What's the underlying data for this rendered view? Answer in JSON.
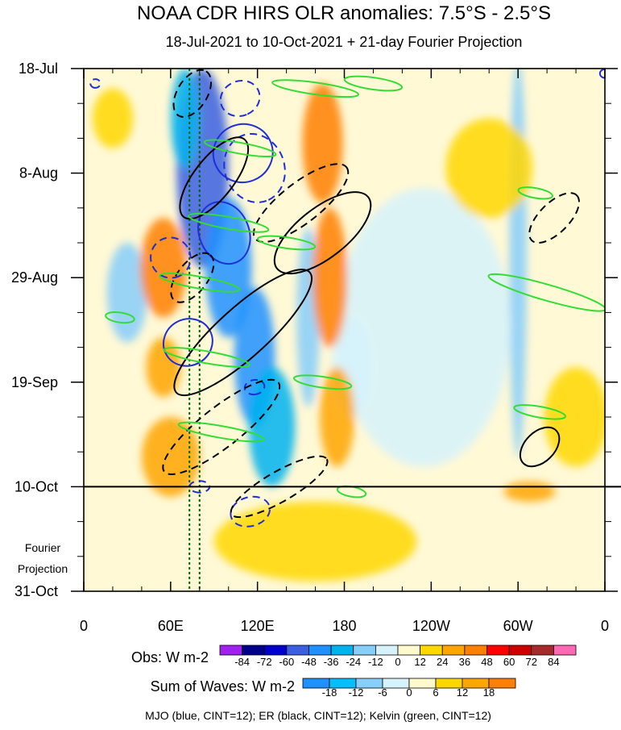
{
  "chart_data": {
    "type": "heatmap",
    "title": "NOAA CDR HIRS OLR anomalies: 7.5°S - 2.5°S",
    "subtitle": "18-Jul-2021 to 10-Oct-2021 + 21-day Fourier Projection",
    "x_axis": {
      "range_deg_east": [
        0,
        360
      ],
      "ticks": [
        {
          "lon": 0,
          "label": "0"
        },
        {
          "lon": 60,
          "label": "60E"
        },
        {
          "lon": 120,
          "label": "120E"
        },
        {
          "lon": 180,
          "label": "180"
        },
        {
          "lon": 240,
          "label": "120W"
        },
        {
          "lon": 300,
          "label": "60W"
        },
        {
          "lon": 360,
          "label": "0"
        }
      ]
    },
    "y_axis": {
      "range_days": [
        0,
        105
      ],
      "ticks": [
        {
          "day": 0,
          "label": "18-Jul"
        },
        {
          "day": 21,
          "label": "8-Aug"
        },
        {
          "day": 42,
          "label": "29-Aug"
        },
        {
          "day": 63,
          "label": "19-Sep"
        },
        {
          "day": 84,
          "label": "10-Oct"
        },
        {
          "day": 105,
          "label": "31-Oct"
        }
      ],
      "projection_start_day": 84,
      "projection_label_line1": "Fourier",
      "projection_label_line2": "Projection"
    },
    "obs_colorbar": {
      "label": "Obs: W m-2",
      "levels": [
        -84,
        -72,
        -60,
        -48,
        -36,
        -24,
        -12,
        0,
        12,
        24,
        36,
        48,
        60,
        72,
        84
      ],
      "labels": [
        "-84",
        "-72",
        "-60",
        "-48",
        "-36",
        "-24",
        "-12",
        "0",
        "12",
        "24",
        "36",
        "48",
        "60",
        "72",
        "84"
      ],
      "colors": [
        "#a020f0",
        "#00008b",
        "#0000cd",
        "#3a5fe0",
        "#1e90ff",
        "#00b2ee",
        "#87cefa",
        "#d6f2fb",
        "#fffacd",
        "#ffd700",
        "#ffa500",
        "#ff7f00",
        "#ff0000",
        "#cd0000",
        "#a52a2a",
        "#ff69b4"
      ]
    },
    "waves_colorbar": {
      "label": "Sum of Waves: W m-2",
      "levels": [
        -18,
        -12,
        -6,
        0,
        6,
        12,
        18
      ],
      "labels": [
        "-18",
        "-12",
        "-6",
        "0",
        "6",
        "12",
        "18"
      ],
      "colors": [
        "#1e90ff",
        "#00bfff",
        "#87cefa",
        "#d6f2fb",
        "#fffacd",
        "#ffd700",
        "#ffa500",
        "#ff7f00"
      ]
    },
    "footer": "MJO (blue, CINT=12); ER (black, CINT=12); Kelvin (green, CINT=12)",
    "features": {
      "mjo_contours": [
        {
          "lon": 110,
          "day": 17,
          "rx": 20,
          "ry": 6,
          "angle": 68,
          "dash": false
        },
        {
          "lon": 97,
          "day": 33,
          "rx": 22,
          "ry": 5,
          "angle": 68,
          "dash": false
        },
        {
          "lon": 72,
          "day": 55,
          "rx": 16,
          "ry": 5,
          "angle": 62,
          "dash": false
        },
        {
          "lon": 118,
          "day": 20,
          "rx": 24,
          "ry": 6,
          "angle": 70,
          "dash": true
        },
        {
          "lon": 108,
          "day": 6,
          "rx": 12,
          "ry": 4,
          "angle": 68,
          "dash": true
        },
        {
          "lon": 60,
          "day": 38,
          "rx": 14,
          "ry": 4,
          "angle": 65,
          "dash": true
        },
        {
          "lon": 118,
          "day": 64,
          "rx": 5,
          "ry": 2,
          "angle": 80,
          "dash": true
        },
        {
          "lon": 80,
          "day": 84,
          "rx": 4,
          "ry": 2,
          "angle": 90,
          "dash": true
        },
        {
          "lon": 115,
          "day": 89,
          "rx": 10,
          "ry": 4,
          "angle": 75,
          "dash": true
        },
        {
          "lon": 8,
          "day": 3,
          "rx": 3,
          "ry": 1,
          "angle": 90,
          "dash": true
        },
        {
          "lon": 360,
          "day": 1,
          "rx": 3,
          "ry": 1,
          "angle": 90,
          "dash": false
        }
      ],
      "er_contours": [
        {
          "lon": 75,
          "day": 5,
          "rx": 18,
          "ry": 3,
          "angle": -58,
          "dash": true
        },
        {
          "lon": 90,
          "day": 22,
          "rx": 34,
          "ry": 4,
          "angle": -52,
          "dash": false
        },
        {
          "lon": 75,
          "day": 42,
          "rx": 20,
          "ry": 3,
          "angle": -52,
          "dash": true
        },
        {
          "lon": 150,
          "day": 27,
          "rx": 40,
          "ry": 4,
          "angle": -38,
          "dash": true
        },
        {
          "lon": 165,
          "day": 33,
          "rx": 40,
          "ry": 5,
          "angle": -38,
          "dash": false
        },
        {
          "lon": 110,
          "day": 53,
          "rx": 62,
          "ry": 5,
          "angle": -42,
          "dash": false
        },
        {
          "lon": 95,
          "day": 72,
          "rx": 50,
          "ry": 4,
          "angle": -38,
          "dash": true
        },
        {
          "lon": 135,
          "day": 84,
          "rx": 38,
          "ry": 3,
          "angle": -30,
          "dash": true
        },
        {
          "lon": 325,
          "day": 30,
          "rx": 22,
          "ry": 3,
          "angle": -45,
          "dash": true
        },
        {
          "lon": 315,
          "day": 76,
          "rx": 16,
          "ry": 3,
          "angle": -45,
          "dash": false
        }
      ],
      "kelvin_contours": [
        {
          "lon": 160,
          "day": 4,
          "rx": 30,
          "ry": 1.2,
          "angle": 8,
          "dash": false
        },
        {
          "lon": 200,
          "day": 3,
          "rx": 20,
          "ry": 1.2,
          "angle": 8,
          "dash": false
        },
        {
          "lon": 108,
          "day": 16,
          "rx": 25,
          "ry": 1.1,
          "angle": 10,
          "dash": false
        },
        {
          "lon": 100,
          "day": 31,
          "rx": 28,
          "ry": 1.2,
          "angle": 10,
          "dash": false
        },
        {
          "lon": 140,
          "day": 35,
          "rx": 20,
          "ry": 1.1,
          "angle": 8,
          "dash": false
        },
        {
          "lon": 80,
          "day": 43,
          "rx": 28,
          "ry": 1.2,
          "angle": 10,
          "dash": false
        },
        {
          "lon": 25,
          "day": 50,
          "rx": 10,
          "ry": 1,
          "angle": 8,
          "dash": false
        },
        {
          "lon": 85,
          "day": 58,
          "rx": 30,
          "ry": 1.2,
          "angle": 10,
          "dash": false
        },
        {
          "lon": 165,
          "day": 63,
          "rx": 20,
          "ry": 1.1,
          "angle": 8,
          "dash": false
        },
        {
          "lon": 95,
          "day": 73,
          "rx": 30,
          "ry": 1.2,
          "angle": 10,
          "dash": false
        },
        {
          "lon": 320,
          "day": 45,
          "rx": 42,
          "ry": 1.6,
          "angle": 16,
          "dash": false
        },
        {
          "lon": 315,
          "day": 69,
          "rx": 18,
          "ry": 1.1,
          "angle": 10,
          "dash": false
        },
        {
          "lon": 312,
          "day": 25,
          "rx": 12,
          "ry": 1,
          "angle": 10,
          "dash": false
        },
        {
          "lon": 185,
          "day": 85,
          "rx": 10,
          "ry": 1,
          "angle": 10,
          "dash": false
        }
      ],
      "dotted_green_lines_lon": [
        73,
        80
      ],
      "obs_blobs": [
        {
          "lon": 82,
          "day": 20,
          "rx": 18,
          "ry": 20,
          "value": -60
        },
        {
          "lon": 100,
          "day": 40,
          "rx": 16,
          "ry": 14,
          "value": -48
        },
        {
          "lon": 118,
          "day": 58,
          "rx": 14,
          "ry": 14,
          "value": -48
        },
        {
          "lon": 70,
          "day": 10,
          "rx": 10,
          "ry": 10,
          "value": -36
        },
        {
          "lon": 130,
          "day": 72,
          "rx": 16,
          "ry": 12,
          "value": -36
        },
        {
          "lon": 30,
          "day": 45,
          "rx": 14,
          "ry": 10,
          "value": -24
        },
        {
          "lon": 155,
          "day": 50,
          "rx": 8,
          "ry": 18,
          "value": -24
        },
        {
          "lon": 300,
          "day": 38,
          "rx": 6,
          "ry": 40,
          "value": -24
        },
        {
          "lon": 235,
          "day": 52,
          "rx": 60,
          "ry": 28,
          "value": -12
        },
        {
          "lon": 185,
          "day": 60,
          "rx": 14,
          "ry": 10,
          "value": -12
        },
        {
          "lon": 165,
          "day": 15,
          "rx": 14,
          "ry": 12,
          "value": 36
        },
        {
          "lon": 170,
          "day": 42,
          "rx": 12,
          "ry": 14,
          "value": 36
        },
        {
          "lon": 175,
          "day": 70,
          "rx": 12,
          "ry": 10,
          "value": 24
        },
        {
          "lon": 55,
          "day": 40,
          "rx": 16,
          "ry": 10,
          "value": 36
        },
        {
          "lon": 60,
          "day": 78,
          "rx": 20,
          "ry": 8,
          "value": 24
        },
        {
          "lon": 55,
          "day": 60,
          "rx": 12,
          "ry": 6,
          "value": 24
        },
        {
          "lon": 20,
          "day": 10,
          "rx": 14,
          "ry": 6,
          "value": 12
        },
        {
          "lon": 280,
          "day": 20,
          "rx": 30,
          "ry": 10,
          "value": 12
        },
        {
          "lon": 340,
          "day": 70,
          "rx": 22,
          "ry": 10,
          "value": 12
        },
        {
          "lon": 160,
          "day": 95,
          "rx": 70,
          "ry": 8,
          "value": 12
        },
        {
          "lon": 308,
          "day": 85,
          "rx": 18,
          "ry": 2,
          "value": 24
        }
      ]
    }
  }
}
